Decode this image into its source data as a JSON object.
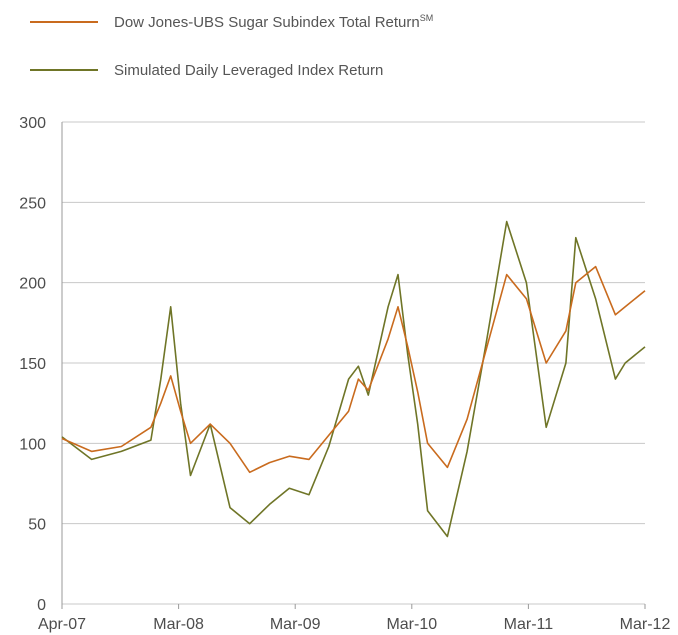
{
  "chart_data": {
    "type": "line",
    "title": "",
    "xlabel": "",
    "ylabel": "",
    "ylim": [
      0,
      300
    ],
    "yticks": [
      0,
      50,
      100,
      150,
      200,
      250,
      300
    ],
    "xtick_labels": [
      "Apr-07",
      "Mar-08",
      "Mar-09",
      "Mar-10",
      "Mar-11",
      "Mar-12"
    ],
    "x_dates": [
      "2007-04",
      "2007-07",
      "2007-10",
      "2008-01",
      "2008-02",
      "2008-03",
      "2008-04",
      "2008-05",
      "2008-07",
      "2008-09",
      "2008-11",
      "2009-01",
      "2009-03",
      "2009-05",
      "2009-07",
      "2009-09",
      "2009-10",
      "2009-11",
      "2010-01",
      "2010-02",
      "2010-03",
      "2010-04",
      "2010-05",
      "2010-07",
      "2010-09",
      "2010-11",
      "2011-01",
      "2011-03",
      "2011-05",
      "2011-07",
      "2011-08",
      "2011-10",
      "2011-12",
      "2012-01",
      "2012-03"
    ],
    "grid": true,
    "legend_position": "top-left",
    "series": [
      {
        "name": "Dow Jones-UBS Sugar Subindex Total Return",
        "name_superscript": "SM",
        "color": "#c96b1e",
        "values": [
          103,
          95,
          98,
          110,
          125,
          142,
          120,
          100,
          112,
          100,
          82,
          88,
          92,
          90,
          105,
          120,
          140,
          133,
          165,
          185,
          160,
          132,
          100,
          85,
          115,
          160,
          205,
          190,
          150,
          170,
          200,
          210,
          180,
          185,
          195
        ]
      },
      {
        "name": "Simulated Daily Leveraged Index Return",
        "color": "#6f7527",
        "values": [
          104,
          90,
          95,
          102,
          140,
          185,
          125,
          80,
          112,
          60,
          50,
          62,
          72,
          68,
          98,
          140,
          148,
          130,
          185,
          205,
          155,
          112,
          58,
          42,
          95,
          165,
          238,
          200,
          110,
          150,
          228,
          190,
          140,
          150,
          160
        ]
      }
    ]
  }
}
